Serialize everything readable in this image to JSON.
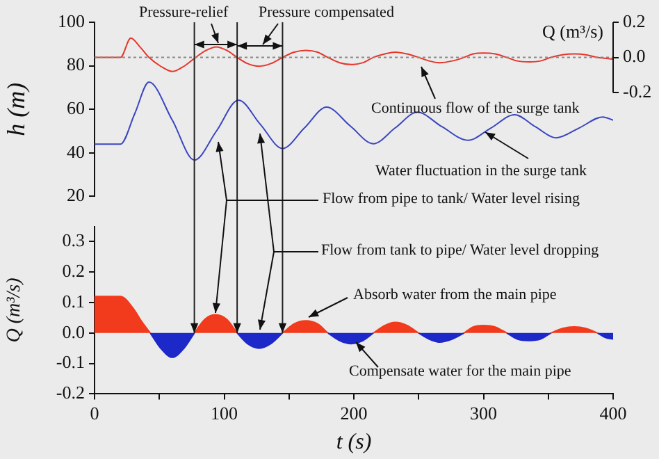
{
  "chart_data": [
    {
      "type": "line",
      "ylabel": "h (m)",
      "y2label": "Q (m³/s)",
      "xlim": [
        0,
        400
      ],
      "ylim": [
        20,
        100
      ],
      "yticks": [
        20,
        40,
        60,
        80,
        100
      ],
      "y2lim": [
        -0.79,
        0.2
      ],
      "y2ticks": [
        -0.2,
        {
          "value": 0,
          "label": "0.0"
        },
        0.2
      ],
      "tick_labels": "y",
      "series": [
        {
          "color": "#e8352a",
          "axis": "y2",
          "x": [
            0,
            20,
            28,
            35,
            42,
            51,
            60,
            69,
            78,
            86,
            94,
            102,
            110,
            118,
            127,
            136,
            145,
            154,
            163,
            172,
            180,
            189,
            198,
            207,
            215,
            224,
            232,
            241,
            250,
            258,
            266,
            276,
            285,
            292,
            300,
            309,
            318,
            326,
            335,
            344,
            352,
            361,
            370,
            379,
            388,
            400
          ],
          "values": [
            0,
            0,
            0.11,
            0.06,
            0,
            -0.05,
            -0.08,
            -0.05,
            0,
            0.04,
            0.06,
            0.04,
            0,
            -0.035,
            -0.05,
            -0.035,
            0,
            0.03,
            0.04,
            0.03,
            0,
            -0.03,
            -0.04,
            -0.03,
            0,
            0.02,
            0.03,
            0.02,
            0,
            -0.02,
            -0.03,
            -0.02,
            0,
            0.02,
            0.025,
            0.02,
            0,
            -0.02,
            -0.025,
            -0.02,
            0,
            0.015,
            0.02,
            0.015,
            0,
            -0.01
          ]
        },
        {
          "color": "#3a46c0",
          "x": [
            0,
            20,
            31,
            42,
            60,
            77,
            94,
            111,
            128,
            145,
            162,
            179,
            197,
            215,
            232,
            249,
            268,
            288,
            306,
            324,
            340,
            356,
            374,
            392,
            400
          ],
          "values": [
            44,
            44,
            58,
            72.5,
            55,
            36.7,
            50,
            64.2,
            53,
            42,
            51.5,
            61,
            52.5,
            44.2,
            51.5,
            58.7,
            52,
            45.8,
            51.5,
            57.5,
            52,
            46.9,
            51.5,
            56.5,
            55
          ]
        }
      ],
      "ref_lines": [
        {
          "axis": "x",
          "value": 77
        },
        {
          "axis": "x",
          "value": 110
        },
        {
          "axis": "x",
          "value": 145
        },
        {
          "axis": "y2",
          "value": 0,
          "color": "#888888",
          "line_style": "dotted"
        }
      ],
      "annotations": [
        "Pressure-relief",
        "Pressure compensated",
        "Continuous flow of the surge tank",
        "Water fluctuation in the surge tank",
        "Flow from pipe to tank/ Water level rising",
        "Flow from tank to pipe/ Water level dropping"
      ]
    },
    {
      "type": "area",
      "xlabel": "t (s)",
      "ylabel": "Q (m³/s)",
      "xlim": [
        0,
        400
      ],
      "xticks": [
        0,
        {
          "value": 50,
          "label": null
        },
        100,
        {
          "value": 150,
          "label": null
        },
        200,
        {
          "value": 250,
          "label": null
        },
        300,
        {
          "value": 350,
          "label": null
        },
        400
      ],
      "ylim": [
        -0.2,
        0.35
      ],
      "yticks": [
        -0.2,
        -0.1,
        {
          "value": 0,
          "label": "0.0"
        },
        0.1,
        0.2,
        0.3
      ],
      "series": [
        {
          "color": "#f23a1c",
          "x": [
            0,
            20,
            30,
            36,
            43,
            60,
            77,
            85,
            93,
            102,
            110,
            127,
            145,
            154,
            163,
            172,
            180,
            198,
            215,
            224,
            232,
            241,
            250,
            266,
            285,
            292,
            300,
            309,
            318,
            335,
            352,
            361,
            370,
            379,
            388
          ],
          "values": [
            0.12,
            0.12,
            0.08,
            0.04,
            0,
            null,
            0,
            0.045,
            0.06,
            0.045,
            0,
            null,
            0,
            0.03,
            0.04,
            0.03,
            0,
            null,
            0,
            0.025,
            0.035,
            0.025,
            0,
            null,
            0,
            0.02,
            0.025,
            0.02,
            0,
            null,
            0,
            0.015,
            0.02,
            0.015,
            0
          ]
        },
        {
          "color": "#1c28c8",
          "x": [
            43,
            51,
            60,
            69,
            77,
            93,
            110,
            118,
            127,
            136,
            145,
            163,
            180,
            189,
            198,
            207,
            215,
            232,
            250,
            258,
            266,
            276,
            285,
            300,
            318,
            326,
            335,
            344,
            352,
            370,
            388,
            394,
            400
          ],
          "values": [
            0,
            -0.05,
            -0.08,
            -0.05,
            0,
            null,
            0,
            -0.035,
            -0.05,
            -0.035,
            0,
            null,
            0,
            -0.025,
            -0.035,
            -0.025,
            0,
            null,
            0,
            -0.02,
            -0.03,
            -0.02,
            0,
            null,
            0,
            -0.02,
            -0.025,
            -0.02,
            0,
            null,
            0,
            -0.015,
            -0.02
          ]
        }
      ],
      "ref_lines": [
        {
          "axis": "x",
          "value": 77
        },
        {
          "axis": "x",
          "value": 110
        },
        {
          "axis": "x",
          "value": 145
        }
      ],
      "annotations": [
        "Absorb water from the main pipe",
        "Compensate water for the main pipe"
      ]
    }
  ]
}
